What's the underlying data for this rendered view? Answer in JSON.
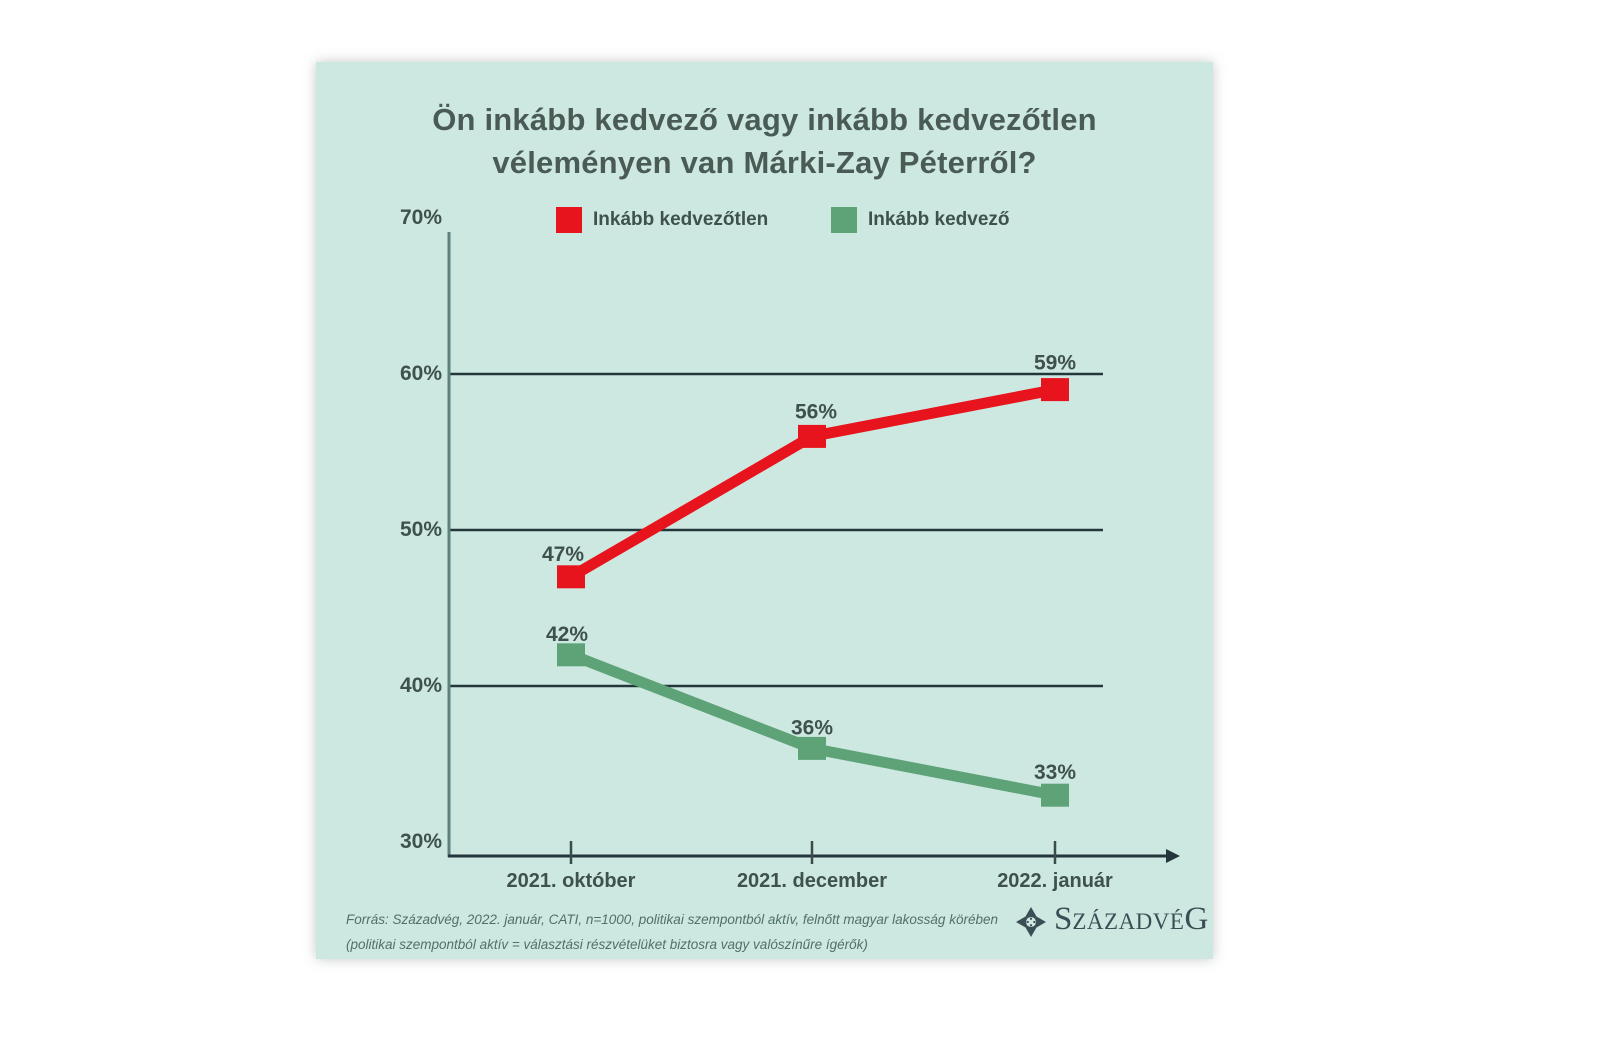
{
  "title": {
    "line1": "Ön inkább kedvező vagy inkább kedvezőtlen",
    "line2": "véleményen van Márki-Zay Péterről?"
  },
  "chart_data": {
    "type": "line",
    "title": "Ön inkább kedvező vagy inkább kedvezőtlen véleményen van Márki-Zay Péterről?",
    "categories": [
      "2021. október",
      "2021. december",
      "2022. január"
    ],
    "series": [
      {
        "name": "Inkább kedvezőtlen",
        "color": "#e8141d",
        "values": [
          47,
          56,
          59
        ]
      },
      {
        "name": "Inkább kedvező",
        "color": "#5ea377",
        "values": [
          42,
          36,
          33
        ]
      }
    ],
    "ylim": [
      30,
      70
    ],
    "yticks": [
      70,
      60,
      50,
      40,
      30
    ],
    "ytick_suffix": "%",
    "gridlines": [
      60,
      50,
      40
    ],
    "grid": true,
    "legend_position": "top",
    "value_labels": true,
    "value_label_suffix": "%"
  },
  "footer": {
    "line1": "Forrás: Századvég, 2022. január, CATI, n=1000, politikai szempontból aktív, felnőtt magyar lakosság körében",
    "line2": "(politikai szempontból aktív = választási részvételüket biztosra vagy valószínűre ígérők)"
  },
  "logo": {
    "name": "Századvég",
    "first": "S",
    "middle": "ZÁZADVÉ",
    "last": "G"
  },
  "colors": {
    "page_bg": "#ffffff",
    "panel_bg": "#cde8e1",
    "grid": "#22363b",
    "axis": "#5e807d",
    "tick": "#3b4c49",
    "text_dark": "#3f514d",
    "title": "#4a5b56",
    "footer": "#50706a",
    "logo": "#3a4f55",
    "unfavorable": "#e8141d",
    "favorable": "#5ea377"
  }
}
